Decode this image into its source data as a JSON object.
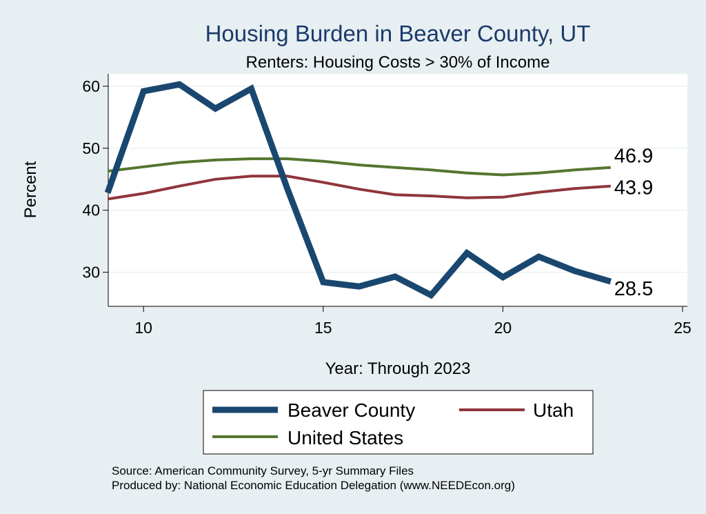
{
  "chart_data": {
    "type": "line",
    "title": "Housing Burden in Beaver County, UT",
    "subtitle": "Renters: Housing Costs > 30% of Income",
    "xlabel": "Year: Through 2023",
    "ylabel": "Percent",
    "xlim": [
      8.5,
      25
    ],
    "ylim": [
      24.5,
      62
    ],
    "xticks": [
      10,
      15,
      20,
      25
    ],
    "yticks": [
      30,
      40,
      50,
      60
    ],
    "grid": "horizontal",
    "legend_position": "bottom",
    "series": [
      {
        "name": "Beaver County",
        "color": "#1a476f",
        "x": [
          9,
          10,
          11,
          12,
          13,
          14,
          15,
          16,
          17,
          18,
          19,
          20,
          21,
          22,
          23
        ],
        "values": [
          42.8,
          59.2,
          60.3,
          56.4,
          59.6,
          43.5,
          28.4,
          27.7,
          29.3,
          26.3,
          33.1,
          29.2,
          32.5,
          30.2,
          28.5
        ],
        "end_label": "28.5"
      },
      {
        "name": "Utah",
        "color": "#90353b",
        "x": [
          9,
          10,
          11,
          12,
          13,
          14,
          15,
          16,
          17,
          18,
          19,
          20,
          21,
          22,
          23
        ],
        "values": [
          41.8,
          42.7,
          43.9,
          45.0,
          45.5,
          45.5,
          44.5,
          43.4,
          42.5,
          42.3,
          42.0,
          42.1,
          42.9,
          43.5,
          43.9
        ],
        "end_label": "43.9"
      },
      {
        "name": "United States",
        "color": "#55752f",
        "x": [
          9,
          10,
          11,
          12,
          13,
          14,
          15,
          16,
          17,
          18,
          19,
          20,
          21,
          22,
          23
        ],
        "values": [
          46.3,
          47.0,
          47.7,
          48.1,
          48.3,
          48.3,
          47.9,
          47.3,
          46.9,
          46.5,
          46.0,
          45.7,
          46.0,
          46.5,
          46.9
        ],
        "end_label": "46.9"
      }
    ],
    "notes": [
      "Source: American Community Survey, 5-yr Summary Files",
      "Produced by: National Economic Education Delegation (www.NEEDEcon.org)"
    ]
  }
}
